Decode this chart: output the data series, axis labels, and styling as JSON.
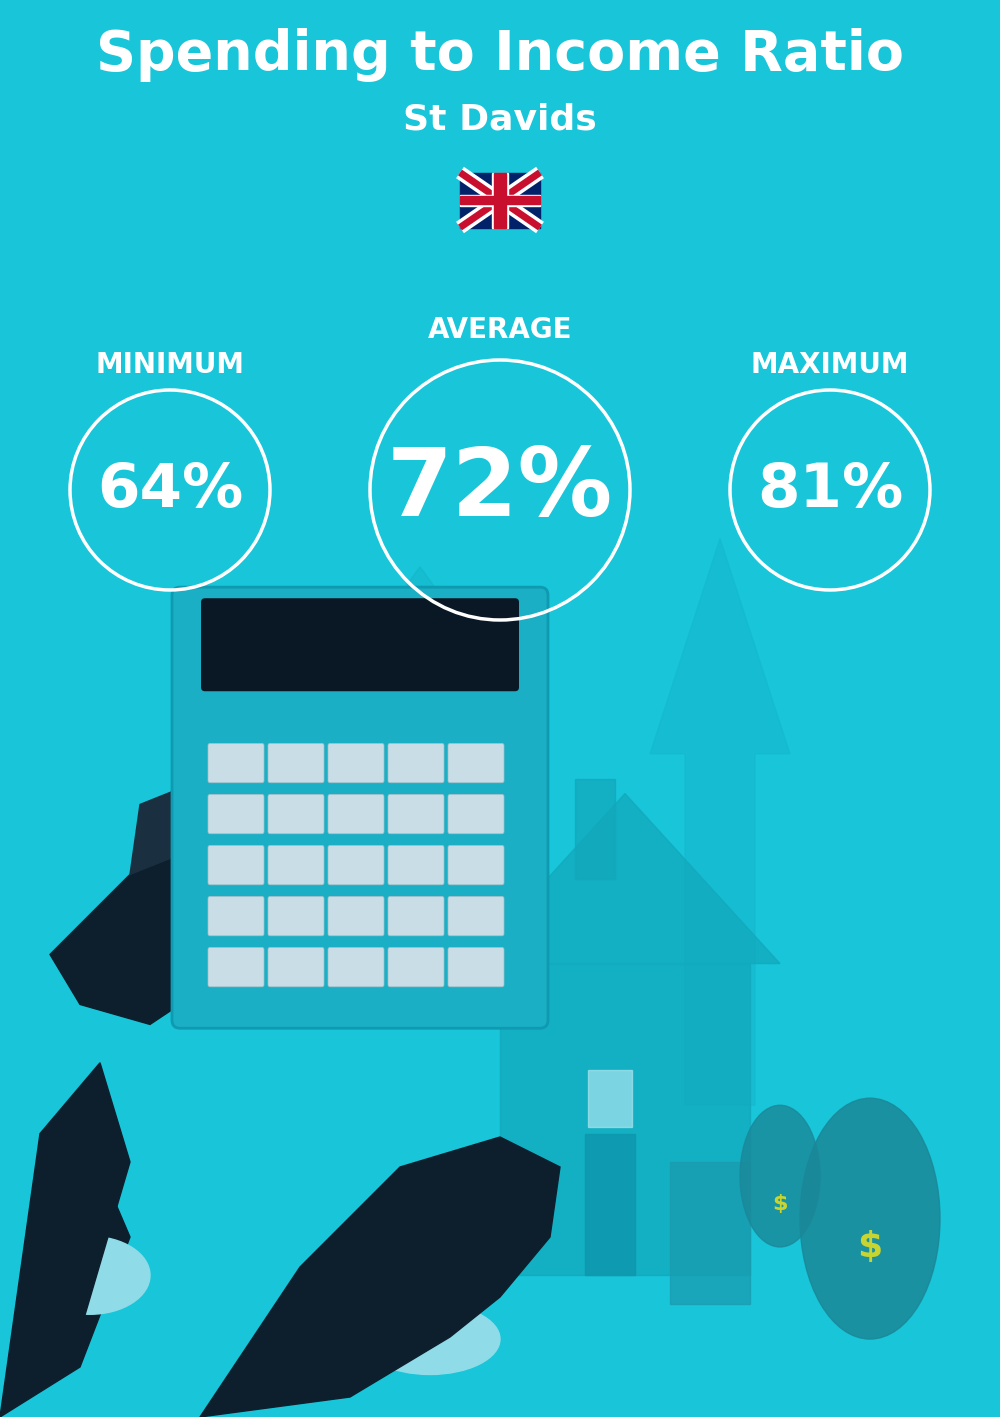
{
  "title": "Spending to Income Ratio",
  "subtitle": "St Davids",
  "flag_emoji": "🇬🇧",
  "bg_color": "#18C5D9",
  "text_color": "#FFFFFF",
  "min_label": "MINIMUM",
  "avg_label": "AVERAGE",
  "max_label": "MAXIMUM",
  "min_value": "64%",
  "avg_value": "72%",
  "max_value": "81%",
  "circle_edge_color": "#FFFFFF",
  "title_fontsize": 40,
  "subtitle_fontsize": 26,
  "label_fontsize": 20,
  "avg_value_fontsize": 68,
  "min_max_value_fontsize": 44,
  "arrow_color": "#15B5CA",
  "house_color": "#12A8BC",
  "calc_body_color": "#1AAFC5",
  "calc_screen_color": "#0A1825",
  "hand_color": "#0D1F2D",
  "cuff_color": "#8FDCE8",
  "money_bag_color": "#2AA8BA"
}
